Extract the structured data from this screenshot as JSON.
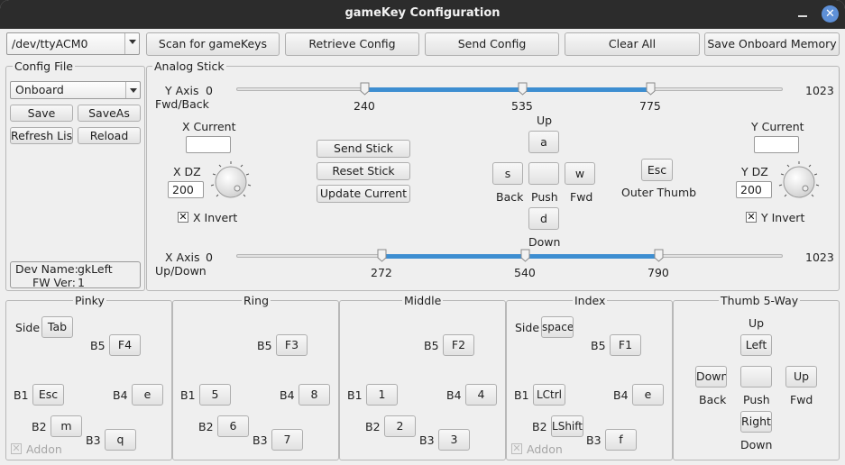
{
  "window": {
    "title": "gameKey Configuration",
    "close_glyph": "✕"
  },
  "toolbar": {
    "port": "/dev/ttyACM0",
    "scan": "Scan for gameKeys",
    "retrieve": "Retrieve Config",
    "send": "Send Config",
    "clear": "Clear All",
    "save_onboard": "Save Onboard Memory"
  },
  "config_file": {
    "title": "Config File",
    "selected": "Onboard",
    "save": "Save",
    "save_as": "SaveAs",
    "refresh": "Refresh List",
    "reload": "Reload",
    "dev_name_label": "Dev Name:",
    "dev_name": "gkLeft",
    "fw_label": "FW Ver:",
    "fw": "1"
  },
  "analog": {
    "title": "Analog Stick",
    "y_axis_label": "Y Axis",
    "y_axis_sub": "Fwd/Back",
    "y_min": "0",
    "y_max": "1023",
    "y_handles": [
      240,
      535,
      775
    ],
    "x_axis_label": "X Axis",
    "x_axis_sub": "Up/Down",
    "x_min": "0",
    "x_max": "1023",
    "x_handles": [
      272,
      540,
      790
    ],
    "range_max": 1023,
    "x_current_label": "X Current",
    "y_current_label": "Y Current",
    "x_dz_label": "X DZ",
    "x_dz": "200",
    "y_dz_label": "Y DZ",
    "y_dz": "200",
    "x_invert": "X Invert",
    "y_invert": "Y Invert",
    "send_stick": "Send Stick",
    "reset_stick": "Reset Stick",
    "update_current": "Update Current",
    "dpad": {
      "up_label": "Up",
      "up_key": "a",
      "back_label": "Back",
      "back_key": "s",
      "push_label": "Push",
      "push_key": "",
      "fwd_label": "Fwd",
      "fwd_key": "w",
      "down_label": "Down",
      "down_key": "d"
    },
    "outer_thumb_key": "Esc",
    "outer_thumb_label": "Outer Thumb"
  },
  "fingers": {
    "pinky": {
      "title": "Pinky",
      "side_label": "Side",
      "side": "Tab",
      "b5_label": "B5",
      "b5": "F4",
      "b1_label": "B1",
      "b1": "Esc",
      "b4_label": "B4",
      "b4": "e",
      "b2_label": "B2",
      "b2": "m",
      "b3_label": "B3",
      "b3": "q",
      "addon": "Addon"
    },
    "ring": {
      "title": "Ring",
      "b5_label": "B5",
      "b5": "F3",
      "b1_label": "B1",
      "b1": "5",
      "b4_label": "B4",
      "b4": "8",
      "b2_label": "B2",
      "b2": "6",
      "b3_label": "B3",
      "b3": "7"
    },
    "middle": {
      "title": "Middle",
      "b5_label": "B5",
      "b5": "F2",
      "b1_label": "B1",
      "b1": "1",
      "b4_label": "B4",
      "b4": "4",
      "b2_label": "B2",
      "b2": "2",
      "b3_label": "B3",
      "b3": "3"
    },
    "index": {
      "title": "Index",
      "side_label": "Side",
      "side": "space",
      "b5_label": "B5",
      "b5": "F1",
      "b1_label": "B1",
      "b1": "LCtrl",
      "b4_label": "B4",
      "b4": "e",
      "b2_label": "B2",
      "b2": "LShift",
      "b3_label": "B3",
      "b3": "f",
      "addon": "Addon"
    },
    "thumb": {
      "title": "Thumb 5-Way",
      "up_label": "Up",
      "up": "Left",
      "back_label": "Back",
      "back": "Down",
      "push_label": "Push",
      "push": "",
      "fwd_label": "Fwd",
      "fwd": "Up",
      "down_label": "Down",
      "down": "Right"
    }
  },
  "colors": {
    "accent": "#3d8ed1",
    "titlebar": "#2c2c2c",
    "close": "#5e90d8"
  }
}
